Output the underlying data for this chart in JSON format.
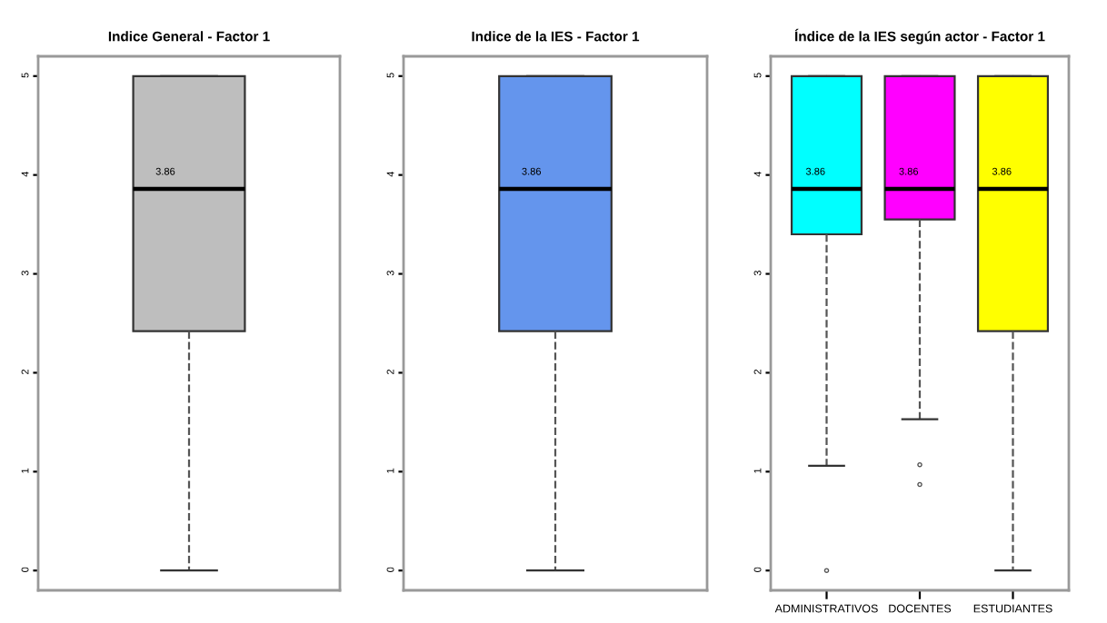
{
  "chart_data": [
    {
      "type": "box",
      "title": "Indice General - Factor 1",
      "categories": [
        null
      ],
      "colors": [
        "#bebebe"
      ],
      "boxes": [
        {
          "low": 0,
          "q1": 2.42,
          "median": 3.86,
          "q3": 5,
          "high": 5
        }
      ],
      "annotations": [
        {
          "text": "3.86",
          "y": 3.86
        }
      ],
      "ylim": [
        -0.2,
        5.2
      ],
      "yticks": [
        0,
        1,
        2,
        3,
        4,
        5
      ],
      "line_style": "dashed"
    },
    {
      "type": "box",
      "title": "Indice de la IES - Factor 1",
      "categories": [
        null
      ],
      "colors": [
        "#6495ed"
      ],
      "boxes": [
        {
          "low": 0,
          "q1": 2.42,
          "median": 3.86,
          "q3": 5,
          "high": 5
        }
      ],
      "annotations": [
        {
          "text": "3.86",
          "y": 3.86
        }
      ],
      "ylim": [
        -0.2,
        5.2
      ],
      "yticks": [
        0,
        1,
        2,
        3,
        4,
        5
      ],
      "line_style": "dashed"
    },
    {
      "type": "box",
      "title": "Índice de la IES según actor - Factor 1",
      "categories": [
        "ADMINISTRATIVOS",
        "DOCENTES",
        "ESTUDIANTES"
      ],
      "colors": [
        "#00ffff",
        "#ff00ff",
        "#ffff00"
      ],
      "boxes": [
        {
          "low": 1.06,
          "q1": 3.4,
          "median": 3.86,
          "q3": 5,
          "high": 5,
          "outliers": [
            0
          ]
        },
        {
          "low": 1.53,
          "q1": 3.55,
          "median": 3.86,
          "q3": 5,
          "high": 5,
          "outliers": [
            1.07,
            0.87
          ]
        },
        {
          "low": 0,
          "q1": 2.42,
          "median": 3.86,
          "q3": 5,
          "high": 5
        }
      ],
      "annotations": [
        {
          "text": "3.86",
          "x": "ADMINISTRATIVOS",
          "y": 3.86
        },
        {
          "text": "3.86",
          "x": "DOCENTES",
          "y": 3.86
        },
        {
          "text": "3.86",
          "x": "ESTUDIANTES",
          "y": 3.86
        }
      ],
      "ylim": [
        -0.2,
        5.2
      ],
      "yticks": [
        0,
        1,
        2,
        3,
        4,
        5
      ],
      "line_style": "dashed"
    }
  ]
}
